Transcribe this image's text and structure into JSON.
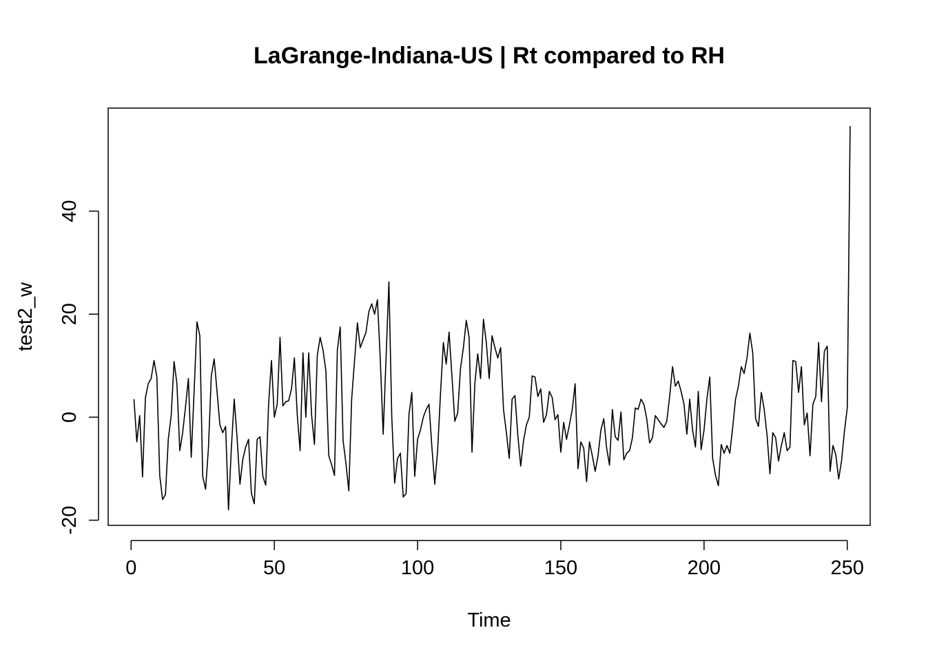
{
  "chart_data": {
    "type": "line",
    "title": "LaGrange-Indiana-US | Rt compared to RH",
    "xlabel": "Time",
    "ylabel": "test2_w",
    "xlim": [
      -8,
      258
    ],
    "ylim": [
      -21,
      60
    ],
    "grid": false,
    "legend": "none",
    "x_ticks": [
      0,
      50,
      100,
      150,
      200,
      250
    ],
    "x_tick_labels": [
      "0",
      "50",
      "100",
      "150",
      "200",
      "250"
    ],
    "y_ticks": [
      -20,
      0,
      20,
      40
    ],
    "y_tick_labels": [
      "-20",
      "0",
      "20",
      "40"
    ],
    "line_color": "#000000",
    "x_start": 1,
    "x_step": 1,
    "series": [
      {
        "values": [
          3.5,
          -4.8,
          0.3,
          -11.6,
          3.8,
          6.5,
          7.5,
          11.0,
          7.8,
          -11.3,
          -16.0,
          -15.0,
          -4.2,
          0.3,
          10.8,
          6.5,
          -6.5,
          -3.0,
          2.0,
          7.5,
          -7.8,
          5.0,
          18.5,
          15.8,
          -11.5,
          -14.0,
          -6.0,
          8.0,
          11.3,
          5.0,
          -1.5,
          -3.0,
          -1.8,
          -18.0,
          -6.0,
          3.5,
          -4.0,
          -13.0,
          -8.2,
          -5.8,
          -4.3,
          -14.8,
          -16.8,
          -4.3,
          -3.8,
          -11.5,
          -13.2,
          2.5,
          11.0,
          0.0,
          2.5,
          15.5,
          2.2,
          3.0,
          3.2,
          5.5,
          11.5,
          0.5,
          -6.5,
          12.5,
          0.0,
          12.5,
          0.5,
          -5.3,
          12.0,
          15.5,
          13.0,
          9.0,
          -7.5,
          -9.2,
          -11.3,
          13.0,
          17.5,
          -4.5,
          -9.0,
          -14.3,
          3.5,
          11.0,
          18.3,
          13.5,
          15.0,
          16.5,
          20.5,
          22.0,
          20.0,
          22.8,
          11.0,
          -3.3,
          11.5,
          26.3,
          0.0,
          -12.8,
          -8.0,
          -7.0,
          -15.5,
          -14.8,
          0.5,
          4.8,
          -11.5,
          -4.3,
          -2.5,
          0.0,
          1.5,
          2.5,
          -5.8,
          -13.0,
          -6.5,
          4.5,
          14.5,
          10.3,
          16.5,
          8.0,
          -0.8,
          0.8,
          9.5,
          13.5,
          18.8,
          15.5,
          -6.8,
          6.5,
          12.3,
          7.5,
          19.0,
          14.5,
          7.5,
          15.8,
          13.5,
          11.5,
          13.5,
          1.5,
          -3.0,
          -8.0,
          3.5,
          4.2,
          -3.5,
          -9.5,
          -4.5,
          -1.5,
          0.0,
          8.0,
          7.8,
          4.0,
          5.5,
          -1.0,
          0.5,
          5.0,
          3.8,
          -0.5,
          0.5,
          -6.8,
          -1.0,
          -4.3,
          -1.5,
          1.5,
          6.5,
          -10.0,
          -4.8,
          -6.0,
          -12.5,
          -4.8,
          -7.5,
          -10.5,
          -7.5,
          -2.5,
          -0.3,
          -6.0,
          -9.3,
          1.5,
          -3.8,
          -4.5,
          1.0,
          -8.3,
          -7.0,
          -6.5,
          -4.0,
          1.8,
          1.5,
          3.5,
          2.5,
          -0.3,
          -5.0,
          -4.0,
          0.3,
          -0.5,
          -1.3,
          -2.0,
          -0.8,
          4.0,
          9.8,
          6.0,
          7.0,
          5.0,
          2.5,
          -3.3,
          3.5,
          -2.5,
          -5.8,
          5.0,
          -6.3,
          -2.5,
          3.5,
          7.8,
          -8.0,
          -11.3,
          -13.3,
          -5.3,
          -7.0,
          -5.5,
          -7.0,
          -2.0,
          3.5,
          6.0,
          9.8,
          8.5,
          11.5,
          16.3,
          12.5,
          -0.3,
          -1.8,
          4.8,
          1.5,
          -3.5,
          -11.0,
          -3.0,
          -4.0,
          -8.5,
          -5.5,
          -3.0,
          -6.5,
          -5.8,
          11.0,
          10.8,
          4.8,
          9.8,
          -1.5,
          0.8,
          -7.5,
          2.5,
          4.0,
          14.5,
          3.0,
          12.8,
          13.8,
          -10.5,
          -5.5,
          -7.3,
          -12.0,
          -8.5,
          -2.8,
          1.8,
          56.5
        ]
      }
    ]
  }
}
